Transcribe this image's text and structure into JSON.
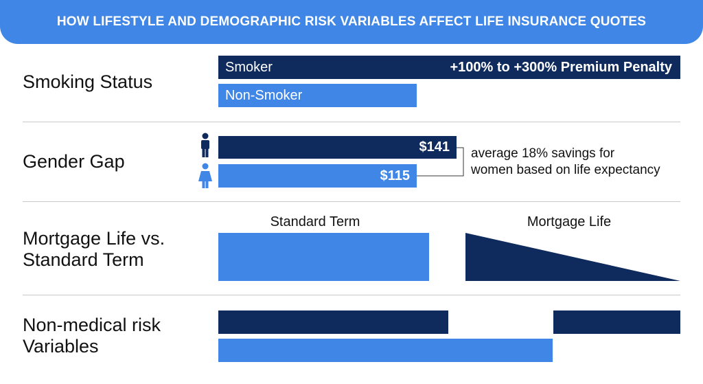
{
  "header": {
    "title": "HOW LIFESTYLE AND DEMOGRAPHIC RISK VARIABLES AFFECT LIFE INSURANCE QUOTES"
  },
  "colors": {
    "dark": "#0f2a5c",
    "light": "#3f86e6",
    "header": "#3f86e6",
    "divider": "#c8c8c8"
  },
  "sections": {
    "smoking": {
      "label": "Smoking Status",
      "smoker_label": "Smoker",
      "smoker_penalty": "+100% to +300% Premium Penalty",
      "non_smoker_label": "Non-Smoker"
    },
    "gender": {
      "label": "Gender Gap",
      "male_value_label": "$141",
      "female_value_label": "$115",
      "male_icon": "male-person-icon",
      "female_icon": "female-person-icon",
      "note_line1": "average 18% savings for",
      "note_line2": "women based on life expectancy"
    },
    "mortgage": {
      "label_line1": "Mortgage Life vs.",
      "label_line2": "Standard Term",
      "standard_label": "Standard Term",
      "mortgage_label": "Mortgage Life"
    },
    "nonmedical": {
      "label_line1": "Non-medical risk",
      "label_line2": "Variables"
    }
  },
  "chart_data": [
    {
      "type": "bar",
      "title": "Smoking Status",
      "categories": [
        "Smoker",
        "Non-Smoker"
      ],
      "annotation": "+100% to +300% Premium Penalty"
    },
    {
      "type": "bar",
      "title": "Gender Gap",
      "series": [
        {
          "name": "male",
          "values": [
            141
          ]
        },
        {
          "name": "female",
          "values": [
            115
          ]
        }
      ],
      "data_labels": [
        "$141",
        "$115"
      ],
      "annotation": "average 18% savings for women based on life expectancy"
    },
    {
      "type": "area",
      "title": "Mortgage Life vs. Standard Term",
      "categories": [
        "Standard Term",
        "Mortgage Life"
      ],
      "shapes": [
        "constant",
        "decreasing"
      ]
    },
    {
      "type": "bar",
      "title": "Non-medical risk Variables"
    }
  ]
}
